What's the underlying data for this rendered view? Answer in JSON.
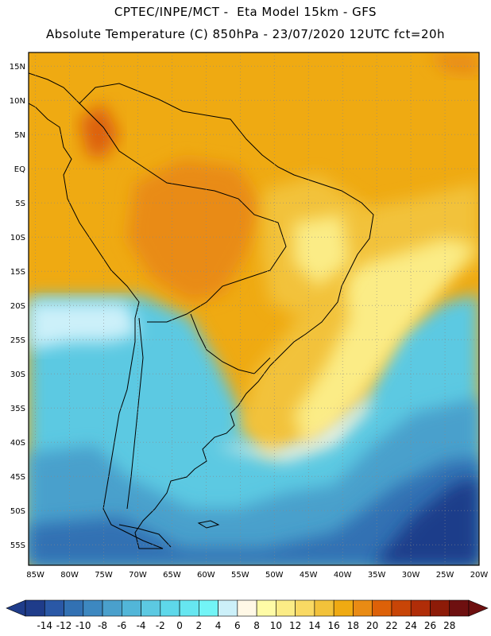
{
  "header": {
    "line1": "CPTEC/INPE/MCT -  Eta Model 15km - GFS",
    "line2": "Absolute Temperature (C) 850hPa - 23/07/2020 12UTC fct=20h"
  },
  "map": {
    "lon_range": [
      -86,
      -20
    ],
    "lat_range": [
      -58,
      17
    ],
    "lon_ticks": [
      "85W",
      "80W",
      "75W",
      "70W",
      "65W",
      "60W",
      "55W",
      "50W",
      "45W",
      "40W",
      "35W",
      "30W",
      "25W",
      "20W"
    ],
    "lat_ticks": [
      "15N",
      "10N",
      "5N",
      "EQ",
      "5S",
      "10S",
      "15S",
      "20S",
      "25S",
      "30S",
      "35S",
      "40S",
      "45S",
      "50S",
      "55S"
    ],
    "grid": "dotted"
  },
  "colorbar": {
    "labels": [
      "-14",
      "-12",
      "-10",
      "-8",
      "-6",
      "-4",
      "-2",
      "0",
      "2",
      "4",
      "6",
      "8",
      "10",
      "12",
      "14",
      "16",
      "18",
      "20",
      "22",
      "24",
      "26",
      "28"
    ],
    "colors": [
      "#1f3c8a",
      "#2a58a6",
      "#3271b3",
      "#3d88c0",
      "#4aa0cc",
      "#52b6d8",
      "#5cc9e2",
      "#5ed8ea",
      "#66e6f0",
      "#72f4f6",
      "#ccf0f9",
      "#fff8e6",
      "#fefba6",
      "#fbec86",
      "#f9d963",
      "#f2c23a",
      "#efaa12",
      "#e98b14",
      "#dd6108",
      "#c84507",
      "#b02d08",
      "#8d1b08",
      "#6e1010"
    ]
  },
  "colors": {
    "ocean_cold_deep": "#1f3c8a",
    "ocean_cold": "#3d88c0",
    "ocean_cool": "#5cc9e2",
    "ocean_mild": "#66e6f0",
    "warm_orange": "#efaa12",
    "warm_yellow": "#f2c23a",
    "hot": "#dd6108",
    "land_outline": "#000000"
  }
}
